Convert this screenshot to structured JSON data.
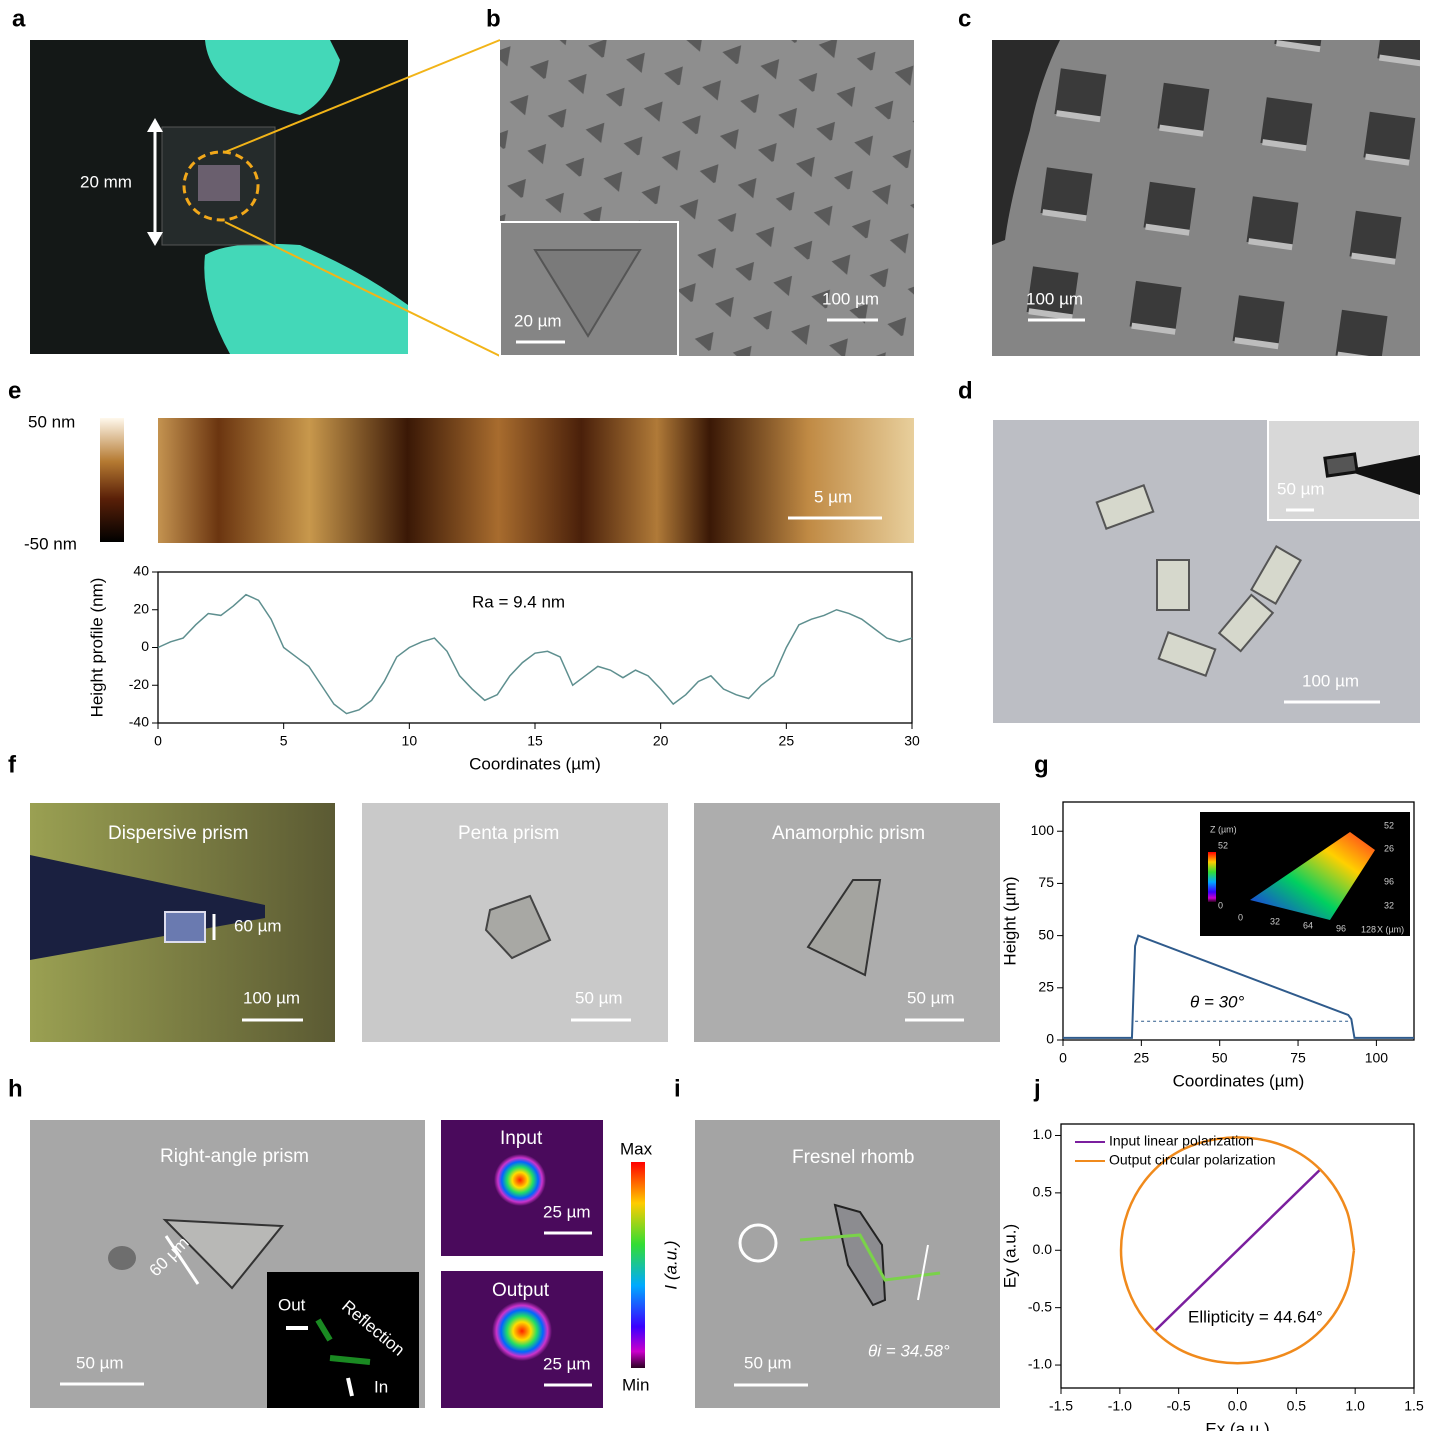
{
  "panel_labels": {
    "a": "a",
    "b": "b",
    "c": "c",
    "e": "e",
    "d": "d",
    "f": "f",
    "g": "g",
    "h": "h",
    "i": "i",
    "j": "j"
  },
  "panel_a": {
    "dimension": "20 mm"
  },
  "panel_b": {
    "scale_bar": "100 µm",
    "inset_scale_bar": "20 µm"
  },
  "panel_c": {
    "scale_bar": "100 µm"
  },
  "panel_e": {
    "colorbar_max": "50 nm",
    "colorbar_min": "-50 nm",
    "map_scale_bar": "5 µm"
  },
  "panel_d": {
    "scale_bar": "100 µm",
    "inset_scale_bar": "50 µm"
  },
  "panel_f": {
    "images": [
      {
        "title": "Dispersive prism",
        "scale_bar": "100 µm",
        "dimension": "60 µm"
      },
      {
        "title": "Penta prism",
        "scale_bar": "50 µm"
      },
      {
        "title": "Anamorphic prism",
        "scale_bar": "50 µm"
      }
    ]
  },
  "panel_g_inset": {
    "z_label": "Z (µm)",
    "z_max": "52",
    "z_min": "0",
    "x_ticks": [
      "0",
      "32",
      "64",
      "96",
      "128"
    ],
    "x_label": "X (µm)",
    "side_ticks": [
      "52",
      "26",
      "96",
      "32"
    ]
  },
  "panel_h": {
    "title": "Right-angle prism",
    "dimension": "60 µm",
    "scale_bar": "50 µm",
    "inset": {
      "out": "Out",
      "in": "In",
      "reflection": "Reflection"
    },
    "input": {
      "title": "Input",
      "scale_bar": "25 µm"
    },
    "output": {
      "title": "Output",
      "scale_bar": "25 µm"
    },
    "colorbar": {
      "max": "Max",
      "min": "Min",
      "label": "I (a.u.)"
    }
  },
  "panel_i": {
    "title": "Fresnel rhomb",
    "scale_bar": "50 µm",
    "angle": "θi = 34.58°"
  },
  "chart_data": [
    {
      "type": "line",
      "xlabel": "Coordinates (µm)",
      "ylabel": "Height profile (nm)",
      "annotation": "Ra = 9.4 nm",
      "color": "#5e8f8f",
      "x": [
        0,
        0.5,
        1,
        1.5,
        2,
        2.5,
        3,
        3.5,
        4,
        4.5,
        5,
        5.5,
        6,
        6.5,
        7,
        7.5,
        8,
        8.5,
        9,
        9.5,
        10,
        10.5,
        11,
        11.5,
        12,
        12.5,
        13,
        13.5,
        14,
        14.5,
        15,
        15.5,
        16,
        16.5,
        17,
        17.5,
        18,
        18.5,
        19,
        19.5,
        20,
        20.5,
        21,
        21.5,
        22,
        22.5,
        23,
        23.5,
        24,
        24.5,
        25,
        25.5,
        26,
        26.5,
        27,
        27.5,
        28,
        28.5,
        29,
        29.5,
        30
      ],
      "values": [
        0,
        3,
        5,
        12,
        18,
        17,
        22,
        28,
        25,
        15,
        0,
        -5,
        -10,
        -20,
        -30,
        -35,
        -33,
        -28,
        -18,
        -5,
        0,
        3,
        5,
        -2,
        -15,
        -22,
        -28,
        -25,
        -15,
        -8,
        -3,
        -2,
        -5,
        -20,
        -15,
        -10,
        -12,
        -16,
        -12,
        -15,
        -22,
        -30,
        -25,
        -18,
        -15,
        -22,
        -25,
        -27,
        -20,
        -15,
        0,
        12,
        15,
        17,
        20,
        18,
        15,
        10,
        5,
        3,
        5
      ],
      "xlim": [
        0,
        30
      ],
      "ylim": [
        -40,
        40
      ],
      "xticks": [
        0,
        5,
        10,
        15,
        20,
        25,
        30
      ],
      "yticks": [
        -40,
        -20,
        0,
        20,
        40
      ]
    },
    {
      "type": "line",
      "xlabel": "Coordinates (µm)",
      "ylabel": "Height (µm)",
      "annotation": "θ = 30°",
      "color": "#2f5b8c",
      "x": [
        0,
        22,
        23,
        24,
        91,
        92,
        93,
        112
      ],
      "values": [
        1,
        1,
        45,
        50,
        12,
        10,
        1,
        1
      ],
      "dashed_line": {
        "x": [
          23,
          91
        ],
        "y": 9
      },
      "xlim": [
        0,
        112
      ],
      "ylim": [
        0,
        114
      ],
      "xticks": [
        0,
        25,
        50,
        75,
        100
      ],
      "yticks": [
        0,
        25,
        50,
        75,
        100
      ]
    },
    {
      "type": "line",
      "xlabel": "Ex (a.u.)",
      "ylabel": "Ey (a.u.)",
      "annotation": "Ellipticity = 44.64°",
      "legend": "upper left",
      "series": [
        {
          "name": "Input linear polarization",
          "color": "#7b1f9e",
          "x": [
            -0.71,
            0.71
          ],
          "values": [
            -0.71,
            0.71
          ]
        },
        {
          "name": "Output circular polarization",
          "color": "#f08a1c",
          "x": [
            0.99,
            0.93,
            0.76,
            0.5,
            0.17,
            -0.17,
            -0.5,
            -0.76,
            -0.93,
            -0.99,
            -0.93,
            -0.76,
            -0.5,
            -0.17,
            0.17,
            0.5,
            0.76,
            0.93,
            0.99
          ],
          "values": [
            0,
            0.34,
            0.64,
            0.86,
            0.97,
            0.97,
            0.86,
            0.64,
            0.34,
            0,
            -0.34,
            -0.64,
            -0.86,
            -0.97,
            -0.97,
            -0.86,
            -0.64,
            -0.34,
            0
          ]
        }
      ],
      "xlim": [
        -1.5,
        1.5
      ],
      "ylim": [
        -1.2,
        1.1
      ],
      "xticks": [
        -1.5,
        {
          "value": -1.0,
          "label": "-1.0"
        },
        -0.5,
        {
          "value": 0.0,
          "label": "0.0"
        },
        0.5,
        {
          "value": 1.0,
          "label": "1.0"
        },
        1.5
      ],
      "yticks": [
        {
          "value": -1.0,
          "label": "-1.0"
        },
        -0.5,
        {
          "value": 0.0,
          "label": "0.0"
        },
        0.5,
        {
          "value": 1.0,
          "label": "1.0"
        }
      ]
    }
  ]
}
